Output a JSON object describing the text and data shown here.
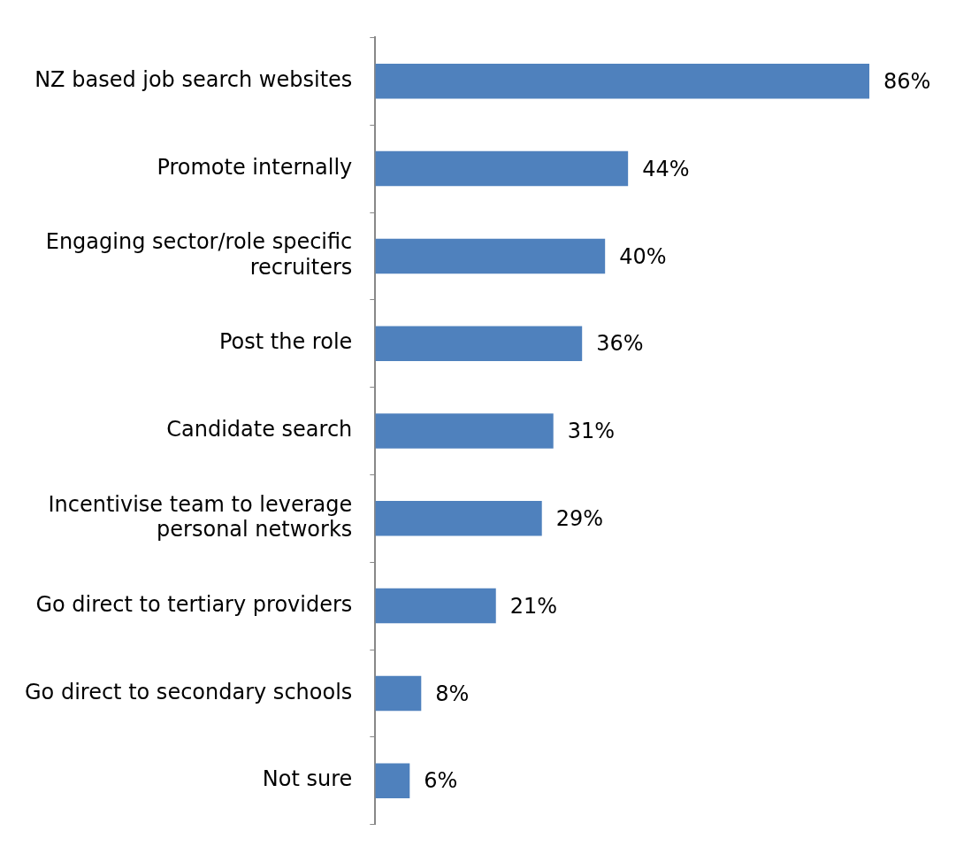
{
  "chart_data": {
    "type": "bar",
    "orientation": "horizontal",
    "categories": [
      "NZ based job search websites",
      "Promote internally",
      "Engaging sector/role specific recruiters",
      "Post the role",
      "Candidate search",
      "Incentivise team to leverage personal networks",
      "Go direct to tertiary providers",
      "Go direct to secondary schools",
      "Not sure"
    ],
    "values": [
      86,
      44,
      40,
      36,
      31,
      29,
      21,
      8,
      6
    ],
    "value_labels": [
      "86%",
      "44%",
      "40%",
      "36%",
      "31%",
      "29%",
      "21%",
      "8%",
      "6%"
    ],
    "color": "#4f81bd"
  }
}
